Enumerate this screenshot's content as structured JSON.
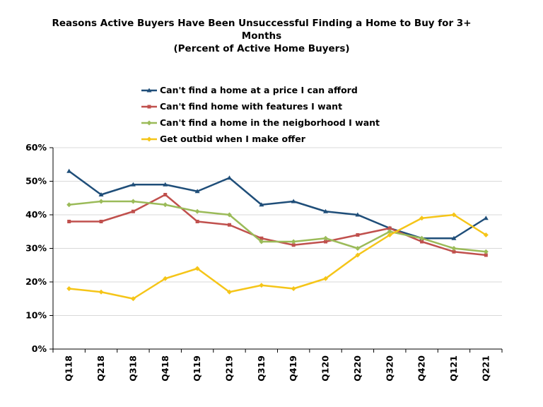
{
  "chart_data": {
    "type": "line",
    "title_lines": [
      "Reasons Active Buyers Have Been Unsuccessful Finding a Home to Buy for 3+",
      "Months",
      "(Percent of Active Home Buyers)"
    ],
    "categories": [
      "Q118",
      "Q218",
      "Q318",
      "Q418",
      "Q119",
      "Q219",
      "Q319",
      "Q419",
      "Q120",
      "Q220",
      "Q320",
      "Q420",
      "Q121",
      "Q221"
    ],
    "y_ticks": [
      "0%",
      "10%",
      "20%",
      "30%",
      "40%",
      "50%",
      "60%"
    ],
    "ylim": [
      0,
      60
    ],
    "grid": true,
    "legend_position": "top",
    "series": [
      {
        "name": "Can't find a home at a price I can afford",
        "color": "#1F4E79",
        "marker": "triangle",
        "values": [
          53,
          46,
          49,
          49,
          47,
          51,
          43,
          44,
          41,
          40,
          36,
          33,
          33,
          39
        ]
      },
      {
        "name": "Can't find home with features I want",
        "color": "#C0504D",
        "marker": "square",
        "values": [
          38,
          38,
          41,
          46,
          38,
          37,
          33,
          31,
          32,
          34,
          36,
          32,
          29,
          28
        ]
      },
      {
        "name": "Can't find a home in the neigborhood I want",
        "color": "#9BBB59",
        "marker": "diamond",
        "values": [
          43,
          44,
          44,
          43,
          41,
          40,
          32,
          32,
          33,
          30,
          35,
          33,
          30,
          29
        ]
      },
      {
        "name": "Get outbid when I make offer",
        "color": "#F5C518",
        "marker": "diamond",
        "values": [
          18,
          17,
          15,
          21,
          24,
          17,
          19,
          18,
          21,
          28,
          34,
          39,
          40,
          34
        ]
      }
    ]
  }
}
